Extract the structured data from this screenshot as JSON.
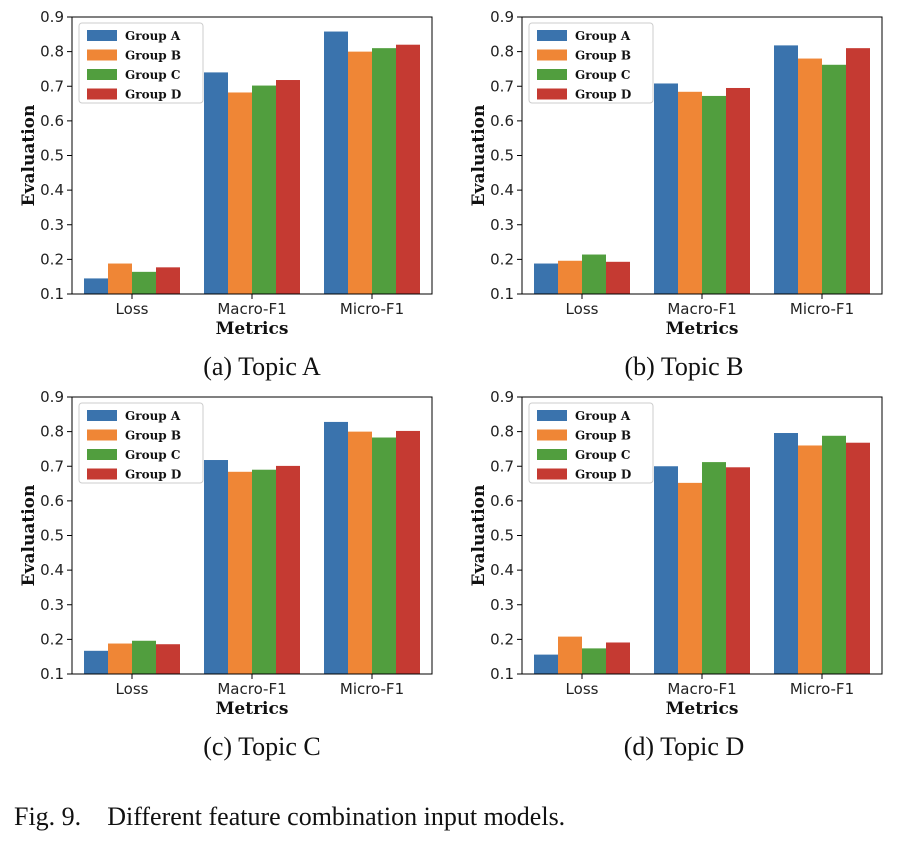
{
  "figure": {
    "number": "Fig. 9.",
    "caption": "Different feature combination input models."
  },
  "colors": {
    "Group A": "#3a73ad",
    "Group B": "#ef8636",
    "Group C": "#519e3e",
    "Group D": "#c53a32"
  },
  "chart_data": [
    {
      "type": "bar",
      "caption": "(a) Topic A",
      "xlabel": "Metrics",
      "ylabel": "Evaluation",
      "ylim": [
        0.1,
        0.9
      ],
      "yticks": [
        "0.1",
        "0.2",
        "0.3",
        "0.4",
        "0.5",
        "0.6",
        "0.7",
        "0.8",
        "0.9"
      ],
      "categories": [
        "Loss",
        "Macro-F1",
        "Micro-F1"
      ],
      "legend_position": "top-left",
      "series": [
        {
          "name": "Group A",
          "values": [
            0.145,
            0.74,
            0.858
          ]
        },
        {
          "name": "Group B",
          "values": [
            0.188,
            0.682,
            0.8
          ]
        },
        {
          "name": "Group C",
          "values": [
            0.164,
            0.702,
            0.81
          ]
        },
        {
          "name": "Group D",
          "values": [
            0.177,
            0.718,
            0.82
          ]
        }
      ]
    },
    {
      "type": "bar",
      "caption": "(b) Topic B",
      "xlabel": "Metrics",
      "ylabel": "Evaluation",
      "ylim": [
        0.1,
        0.9
      ],
      "yticks": [
        "0.1",
        "0.2",
        "0.3",
        "0.4",
        "0.5",
        "0.6",
        "0.7",
        "0.8",
        "0.9"
      ],
      "categories": [
        "Loss",
        "Macro-F1",
        "Micro-F1"
      ],
      "legend_position": "top-left",
      "series": [
        {
          "name": "Group A",
          "values": [
            0.188,
            0.708,
            0.818
          ]
        },
        {
          "name": "Group B",
          "values": [
            0.196,
            0.684,
            0.78
          ]
        },
        {
          "name": "Group C",
          "values": [
            0.214,
            0.672,
            0.762
          ]
        },
        {
          "name": "Group D",
          "values": [
            0.193,
            0.695,
            0.81
          ]
        }
      ]
    },
    {
      "type": "bar",
      "caption": "(c) Topic C",
      "xlabel": "Metrics",
      "ylabel": "Evaluation",
      "ylim": [
        0.1,
        0.9
      ],
      "yticks": [
        "0.1",
        "0.2",
        "0.3",
        "0.4",
        "0.5",
        "0.6",
        "0.7",
        "0.8",
        "0.9"
      ],
      "categories": [
        "Loss",
        "Macro-F1",
        "Micro-F1"
      ],
      "legend_position": "top-left",
      "series": [
        {
          "name": "Group A",
          "values": [
            0.167,
            0.718,
            0.828
          ]
        },
        {
          "name": "Group B",
          "values": [
            0.188,
            0.684,
            0.8
          ]
        },
        {
          "name": "Group C",
          "values": [
            0.196,
            0.69,
            0.783
          ]
        },
        {
          "name": "Group D",
          "values": [
            0.186,
            0.701,
            0.802
          ]
        }
      ]
    },
    {
      "type": "bar",
      "caption": "(d) Topic D",
      "xlabel": "Metrics",
      "ylabel": "Evaluation",
      "ylim": [
        0.1,
        0.9
      ],
      "yticks": [
        "0.1",
        "0.2",
        "0.3",
        "0.4",
        "0.5",
        "0.6",
        "0.7",
        "0.8",
        "0.9"
      ],
      "categories": [
        "Loss",
        "Macro-F1",
        "Micro-F1"
      ],
      "legend_position": "top-left",
      "series": [
        {
          "name": "Group A",
          "values": [
            0.156,
            0.7,
            0.796
          ]
        },
        {
          "name": "Group B",
          "values": [
            0.208,
            0.652,
            0.76
          ]
        },
        {
          "name": "Group C",
          "values": [
            0.174,
            0.712,
            0.788
          ]
        },
        {
          "name": "Group D",
          "values": [
            0.191,
            0.697,
            0.768
          ]
        }
      ]
    }
  ]
}
